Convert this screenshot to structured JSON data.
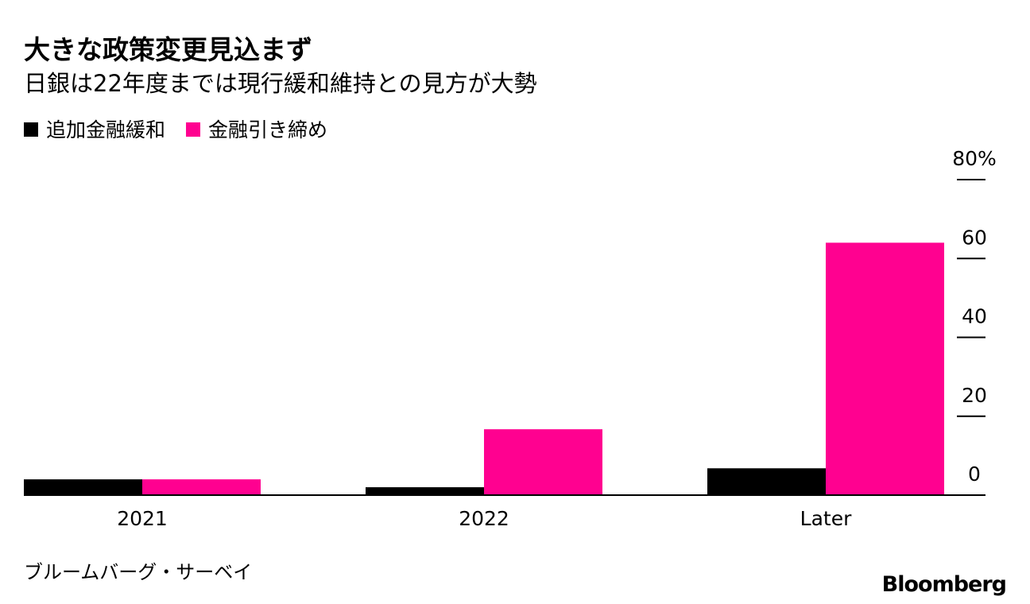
{
  "chart_data": {
    "type": "bar",
    "title": "大きな政策変更見込まず",
    "subtitle": "日銀は22年度までは現行緩和維持との見方が大勢",
    "categories": [
      "2021",
      "2022",
      "Later"
    ],
    "series": [
      {
        "name": "追加金融緩和",
        "color": "#000000",
        "values": [
          4,
          2,
          6.8
        ]
      },
      {
        "name": "金融引き締め",
        "color": "#ff0190",
        "values": [
          4,
          16.7,
          64
        ]
      }
    ],
    "ylim": [
      0,
      80
    ],
    "yticks": [
      0,
      20,
      40,
      60,
      {
        "value": 80,
        "label": "80%"
      }
    ],
    "source": "ブルームバーグ・サーベイ",
    "brand": "Bloomberg"
  }
}
